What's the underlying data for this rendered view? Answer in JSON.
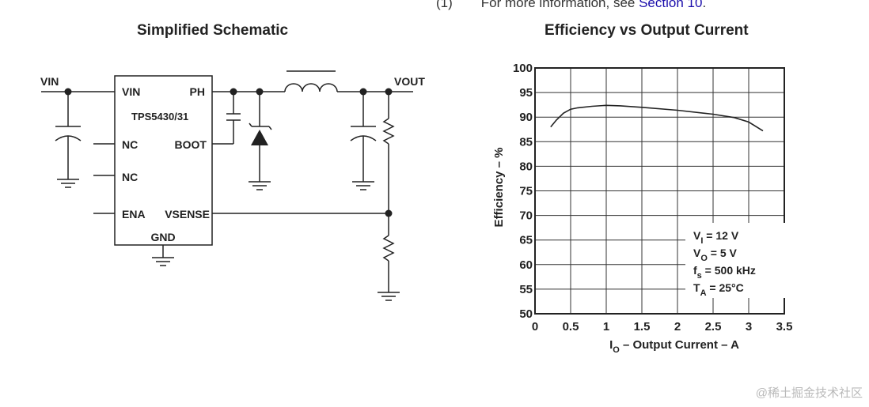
{
  "footnote": {
    "num": "(1)",
    "text": "For more information, see ",
    "link": "Section 10",
    "end": "."
  },
  "schematic": {
    "title": "Simplified Schematic",
    "chip_name": "TPS5430/31",
    "pins": {
      "vin": "VIN",
      "ph": "PH",
      "nc1": "NC",
      "boot": "BOOT",
      "nc2": "NC",
      "ena": "ENA",
      "vsense": "VSENSE",
      "gnd": "GND"
    },
    "vin_label": "VIN",
    "vout_label": "VOUT"
  },
  "chart": {
    "title": "Efficiency vs Output Current"
  },
  "chart_data": {
    "type": "line",
    "title": "Efficiency vs Output Current",
    "xlabel": "I_O – Output Current – A",
    "xlabel_main": "I",
    "xlabel_sub": "O",
    "xlabel_rest": " – Output Current – A",
    "ylabel": "Efficiency – %",
    "xlim": [
      0,
      3.5
    ],
    "ylim": [
      50,
      100
    ],
    "xticks": [
      "0",
      "0.5",
      "1",
      "1.5",
      "2",
      "2.5",
      "3",
      "3.5"
    ],
    "yticks": [
      "50",
      "55",
      "60",
      "65",
      "70",
      "75",
      "80",
      "85",
      "90",
      "95",
      "100"
    ],
    "grid": true,
    "series": [
      {
        "x": [
          0.22,
          0.3,
          0.4,
          0.5,
          0.6,
          0.8,
          1.0,
          1.2,
          1.5,
          2.0,
          2.5,
          2.8,
          3.0,
          3.2
        ],
        "y": [
          88.0,
          89.4,
          90.8,
          91.6,
          91.9,
          92.2,
          92.4,
          92.3,
          92.0,
          91.4,
          90.6,
          89.9,
          89.0,
          87.2
        ]
      }
    ],
    "conditions": [
      {
        "main": "V",
        "sub": "I",
        "rest": " = 12 V"
      },
      {
        "main": "V",
        "sub": "O",
        "rest": " = 5 V"
      },
      {
        "main": "f",
        "sub": "s",
        "rest": " = 500 kHz"
      },
      {
        "main": "T",
        "sub": "A",
        "rest": " = 25°C"
      }
    ]
  },
  "watermark": "@稀土掘金技术社区"
}
